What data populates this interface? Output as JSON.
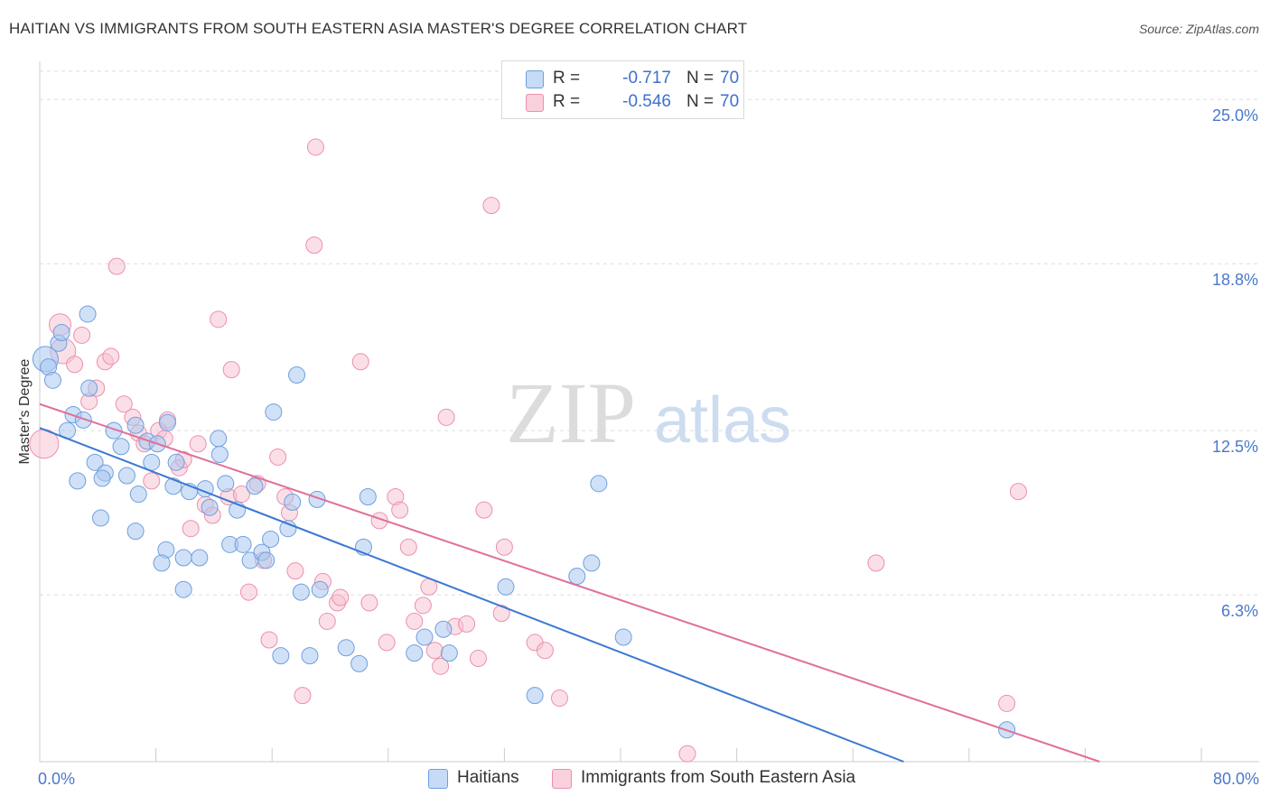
{
  "header": {
    "title": "HAITIAN VS IMMIGRANTS FROM SOUTH EASTERN ASIA MASTER'S DEGREE CORRELATION CHART",
    "source": "Source: ZipAtlas.com"
  },
  "watermark": {
    "part1": "ZIP",
    "part2": "atlas"
  },
  "legend": {
    "series1": {
      "r_label": "R =",
      "r_value": "-0.717",
      "n_label": "N =",
      "n_value": "70",
      "color": "#aac8f0",
      "border": "#6f9fde"
    },
    "series2": {
      "r_label": "R =",
      "r_value": "-0.546",
      "n_label": "N =",
      "n_value": "70",
      "color": "#f8c0d0",
      "border": "#ec8fae"
    }
  },
  "bottom_legend": {
    "series1_label": "Haitians",
    "series2_label": "Immigrants from South Eastern Asia"
  },
  "colors": {
    "blue_line": "#3a78d4",
    "pink_line": "#e07098",
    "tick_text": "#4a78cc",
    "grid": "#dddddd"
  },
  "chart_data": {
    "type": "scatter",
    "title": "HAITIAN VS IMMIGRANTS FROM SOUTH EASTERN ASIA MASTER'S DEGREE CORRELATION CHART",
    "xlabel": "",
    "ylabel": "Master's Degree",
    "xlim": [
      0,
      80
    ],
    "ylim": [
      0,
      26.2
    ],
    "x_tick_labels": [
      "0.0%",
      "80.0%"
    ],
    "y_ticks": [
      6.3,
      12.5,
      18.8,
      25.0
    ],
    "y_tick_labels": [
      "6.3%",
      "12.5%",
      "18.8%",
      "25.0%"
    ],
    "series": [
      {
        "name": "Haitians",
        "r": -0.717,
        "n": 70,
        "trend": {
          "x": [
            0,
            59.5
          ],
          "y": [
            12.6,
            0
          ]
        },
        "points": [
          [
            0.4,
            15.2,
            14
          ],
          [
            0.6,
            14.9,
            9
          ],
          [
            0.9,
            14.4,
            9
          ],
          [
            1.3,
            15.8,
            9
          ],
          [
            1.5,
            16.2,
            9
          ],
          [
            3.3,
            16.9,
            9
          ],
          [
            1.9,
            12.5,
            9
          ],
          [
            2.3,
            13.1,
            9
          ],
          [
            3.0,
            12.9,
            9
          ],
          [
            3.4,
            14.1,
            9
          ],
          [
            2.6,
            10.6,
            9
          ],
          [
            3.8,
            11.3,
            9
          ],
          [
            4.5,
            10.9,
            9
          ],
          [
            4.3,
            10.7,
            9
          ],
          [
            5.1,
            12.5,
            9
          ],
          [
            5.6,
            11.9,
            9
          ],
          [
            6.0,
            10.8,
            9
          ],
          [
            6.6,
            12.7,
            9
          ],
          [
            7.4,
            12.1,
            9
          ],
          [
            8.1,
            12.0,
            9
          ],
          [
            8.8,
            12.8,
            9
          ],
          [
            9.4,
            11.3,
            9
          ],
          [
            9.2,
            10.4,
            9
          ],
          [
            6.8,
            10.1,
            9
          ],
          [
            4.2,
            9.2,
            9
          ],
          [
            6.6,
            8.7,
            9
          ],
          [
            8.7,
            8.0,
            9
          ],
          [
            8.4,
            7.5,
            9
          ],
          [
            9.9,
            7.7,
            9
          ],
          [
            11.0,
            7.7,
            9
          ],
          [
            9.9,
            6.5,
            9
          ],
          [
            11.4,
            10.3,
            9
          ],
          [
            11.7,
            9.6,
            9
          ],
          [
            12.3,
            12.2,
            9
          ],
          [
            12.4,
            11.6,
            9
          ],
          [
            10.3,
            10.2,
            9
          ],
          [
            12.8,
            10.5,
            9
          ],
          [
            13.6,
            9.5,
            9
          ],
          [
            13.1,
            8.2,
            9
          ],
          [
            14.0,
            8.2,
            9
          ],
          [
            14.5,
            7.6,
            9
          ],
          [
            15.3,
            7.9,
            9
          ],
          [
            15.6,
            7.6,
            9
          ],
          [
            15.9,
            8.4,
            9
          ],
          [
            14.8,
            10.4,
            9
          ],
          [
            16.1,
            13.2,
            9
          ],
          [
            17.1,
            8.8,
            9
          ],
          [
            17.4,
            9.8,
            9
          ],
          [
            17.7,
            14.6,
            9
          ],
          [
            18.0,
            6.4,
            9
          ],
          [
            19.1,
            9.9,
            9
          ],
          [
            19.3,
            6.5,
            9
          ],
          [
            18.6,
            4.0,
            9
          ],
          [
            16.6,
            4.0,
            9
          ],
          [
            21.1,
            4.3,
            9
          ],
          [
            22.0,
            3.7,
            9
          ],
          [
            22.3,
            8.1,
            9
          ],
          [
            22.6,
            10.0,
            9
          ],
          [
            25.8,
            4.1,
            9
          ],
          [
            26.5,
            4.7,
            9
          ],
          [
            27.8,
            5.0,
            9
          ],
          [
            28.2,
            4.1,
            9
          ],
          [
            32.1,
            6.6,
            9
          ],
          [
            34.1,
            2.5,
            9
          ],
          [
            37.0,
            7.0,
            9
          ],
          [
            38.0,
            7.5,
            9
          ],
          [
            38.5,
            10.5,
            9
          ],
          [
            40.2,
            4.7,
            9
          ],
          [
            66.6,
            1.2,
            9
          ],
          [
            7.7,
            11.3,
            9
          ]
        ]
      },
      {
        "name": "Immigrants from South Eastern Asia",
        "r": -0.546,
        "n": 70,
        "trend": {
          "x": [
            0,
            73.0
          ],
          "y": [
            13.5,
            0
          ]
        },
        "points": [
          [
            0.3,
            12.0,
            16
          ],
          [
            1.4,
            16.5,
            12
          ],
          [
            1.6,
            15.5,
            14
          ],
          [
            2.4,
            15.0,
            9
          ],
          [
            2.9,
            16.1,
            9
          ],
          [
            3.4,
            13.6,
            9
          ],
          [
            3.9,
            14.1,
            9
          ],
          [
            4.5,
            15.1,
            9
          ],
          [
            4.9,
            15.3,
            9
          ],
          [
            5.3,
            18.7,
            9
          ],
          [
            5.8,
            13.5,
            9
          ],
          [
            6.4,
            13.0,
            9
          ],
          [
            6.8,
            12.4,
            9
          ],
          [
            7.2,
            12.0,
            9
          ],
          [
            7.7,
            10.6,
            9
          ],
          [
            8.2,
            12.5,
            9
          ],
          [
            8.8,
            12.9,
            9
          ],
          [
            9.6,
            11.1,
            9
          ],
          [
            9.9,
            11.4,
            9
          ],
          [
            10.4,
            8.8,
            9
          ],
          [
            10.9,
            12.0,
            9
          ],
          [
            11.4,
            9.7,
            9
          ],
          [
            11.9,
            9.3,
            9
          ],
          [
            12.3,
            16.7,
            9
          ],
          [
            13.0,
            10.0,
            9
          ],
          [
            13.2,
            14.8,
            9
          ],
          [
            13.9,
            10.1,
            9
          ],
          [
            14.4,
            6.4,
            9
          ],
          [
            15.0,
            10.5,
            9
          ],
          [
            15.4,
            7.6,
            9
          ],
          [
            15.8,
            4.6,
            9
          ],
          [
            16.4,
            11.5,
            9
          ],
          [
            16.9,
            10.0,
            9
          ],
          [
            17.2,
            9.4,
            9
          ],
          [
            17.6,
            7.2,
            9
          ],
          [
            18.1,
            2.5,
            9
          ],
          [
            18.9,
            19.5,
            9
          ],
          [
            19.0,
            23.2,
            9
          ],
          [
            19.5,
            6.8,
            9
          ],
          [
            19.8,
            5.3,
            9
          ],
          [
            20.5,
            6.0,
            9
          ],
          [
            20.7,
            6.2,
            9
          ],
          [
            22.1,
            15.1,
            9
          ],
          [
            22.7,
            6.0,
            9
          ],
          [
            23.4,
            9.1,
            9
          ],
          [
            23.9,
            4.5,
            9
          ],
          [
            24.5,
            10.0,
            9
          ],
          [
            24.8,
            9.5,
            9
          ],
          [
            25.4,
            8.1,
            9
          ],
          [
            25.8,
            5.3,
            9
          ],
          [
            26.4,
            5.9,
            9
          ],
          [
            26.8,
            6.6,
            9
          ],
          [
            27.2,
            4.2,
            9
          ],
          [
            27.6,
            3.6,
            9
          ],
          [
            28.0,
            13.0,
            9
          ],
          [
            28.6,
            5.1,
            9
          ],
          [
            29.4,
            5.2,
            9
          ],
          [
            30.2,
            3.9,
            9
          ],
          [
            30.6,
            9.5,
            9
          ],
          [
            31.1,
            21.0,
            9
          ],
          [
            32.0,
            8.1,
            9
          ],
          [
            34.1,
            4.5,
            9
          ],
          [
            34.8,
            4.2,
            9
          ],
          [
            35.8,
            2.4,
            9
          ],
          [
            44.6,
            0.3,
            9
          ],
          [
            57.6,
            7.5,
            9
          ],
          [
            66.6,
            2.2,
            9
          ],
          [
            67.4,
            10.2,
            9
          ],
          [
            31.8,
            5.6,
            9
          ],
          [
            8.6,
            12.2,
            9
          ]
        ]
      }
    ]
  }
}
